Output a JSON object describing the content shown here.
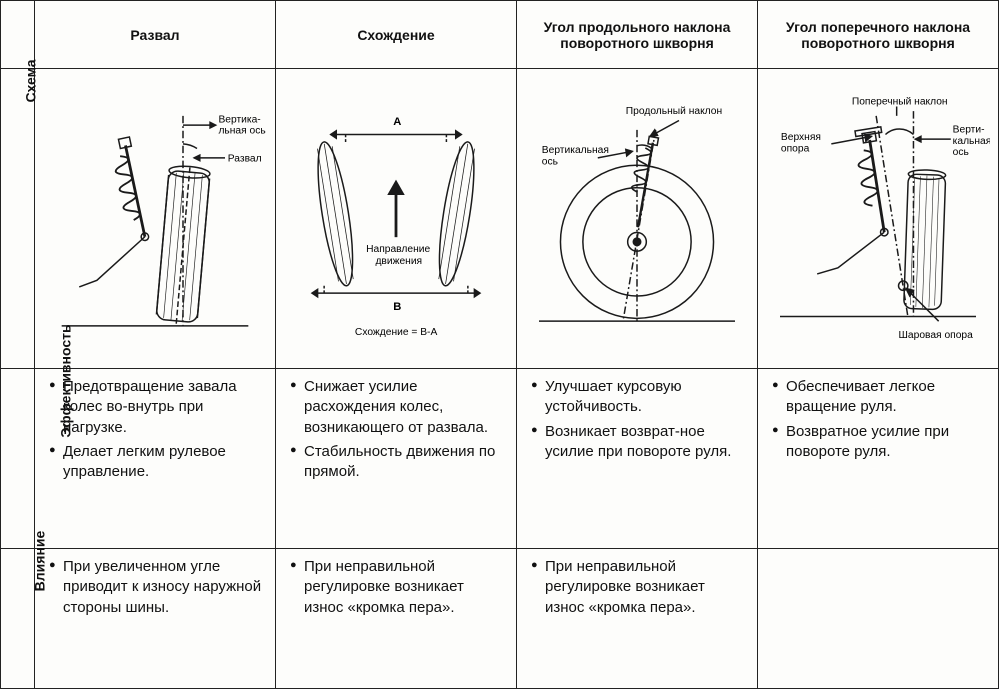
{
  "columns": [
    {
      "key": "camber",
      "header": "Развал"
    },
    {
      "key": "toe",
      "header": "Схождение"
    },
    {
      "key": "caster",
      "header": "Угол продольного наклона поворотного шкворня"
    },
    {
      "key": "kpi",
      "header": "Угол поперечного наклона поворотного шкворня"
    }
  ],
  "row_labels": {
    "diagram": "Схема",
    "effect": "Эффективность",
    "impact": "Влияние"
  },
  "diagram_labels": {
    "camber": {
      "vertical_axis": "Вертика-\nльная ось",
      "camber": "Развал"
    },
    "toe": {
      "A": "A",
      "B": "B",
      "direction": "Направление\nдвижения",
      "formula": "Схождение = В-А"
    },
    "caster": {
      "caster": "Продольный наклон",
      "vertical_axis": "Вертикальная\nось"
    },
    "kpi": {
      "kpi": "Поперечный наклон",
      "upper": "Верхняя\nопора",
      "vertical_axis": "Верти-\nкальная\nось",
      "ball": "Шаровая опора"
    }
  },
  "effectiveness": {
    "camber": [
      "Предотвращение завала колес во-внутрь при нагрузке.",
      "Делает легким рулевое управление."
    ],
    "toe": [
      "Снижает усилие расхождения колес, возникающего от развала.",
      "Стабильность движения по прямой."
    ],
    "caster": [
      "Улучшает курсовую устойчивость.",
      "Возникает возврат-ное усилие при повороте руля."
    ],
    "kpi": [
      "Обеспечивает легкое вращение руля.",
      "Возвратное усилие при повороте руля."
    ]
  },
  "impact": {
    "camber": [
      "При увеличенном угле приводит к износу наружной стороны шины."
    ],
    "toe": [
      "При неправильной регулировке возникает износ «кромка пера»."
    ],
    "caster": [
      "При неправильной регулировке возникает износ «кромка пера»."
    ],
    "kpi": []
  },
  "style": {
    "stroke": "#1a1a1a",
    "stroke_width": 1.6,
    "background": "#fdfdfb",
    "font_size_header": 14,
    "font_size_body": 15,
    "font_size_label": 12
  }
}
